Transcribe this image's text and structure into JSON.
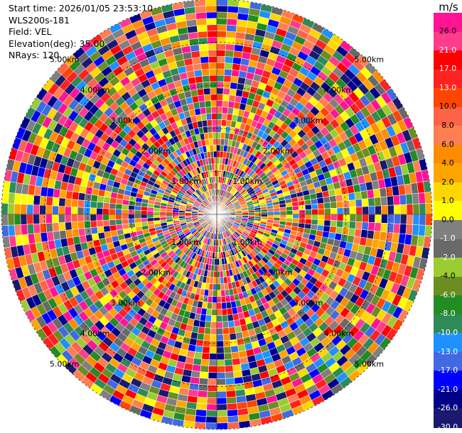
{
  "header": {
    "start_time": "Start time: 2026/01/05 23:53:10",
    "instrument": "WLS200s-181",
    "field": "Field: VEL",
    "elevation": "Elevation(deg): 35.00",
    "nrays": "NRays: 120"
  },
  "colorbar": {
    "units": "m/s",
    "ticks": [
      "26.0",
      "21.0",
      "17.0",
      "13.0",
      "10.0",
      "8.0",
      "6.0",
      "4.0",
      "2.0",
      "1.0",
      "0.0",
      "-1.0",
      "-2.0",
      "-4.0",
      "-6.0",
      "-8.0",
      "-10.0",
      "-13.0",
      "-17.0",
      "-21.0",
      "-26.0",
      "-30.0"
    ],
    "colors": [
      "#ff1493",
      "#ff3c8c",
      "#ff0000",
      "#ff2020",
      "#ff4500",
      "#ff6347",
      "#ff7f50",
      "#ff8c00",
      "#ffa500",
      "#ffd700",
      "#ffff00",
      "#808080",
      "#696969",
      "#9acd32",
      "#6b8e23",
      "#228b22",
      "#2e8b57",
      "#1e90ff",
      "#4169e1",
      "#0000ff",
      "#00008b",
      "#191970"
    ]
  },
  "range_labels": [
    "1.00km",
    "2.00km",
    "3.00km",
    "4.00km",
    "5.00km"
  ],
  "range_rings": [
    1,
    2,
    3,
    4,
    5
  ]
}
